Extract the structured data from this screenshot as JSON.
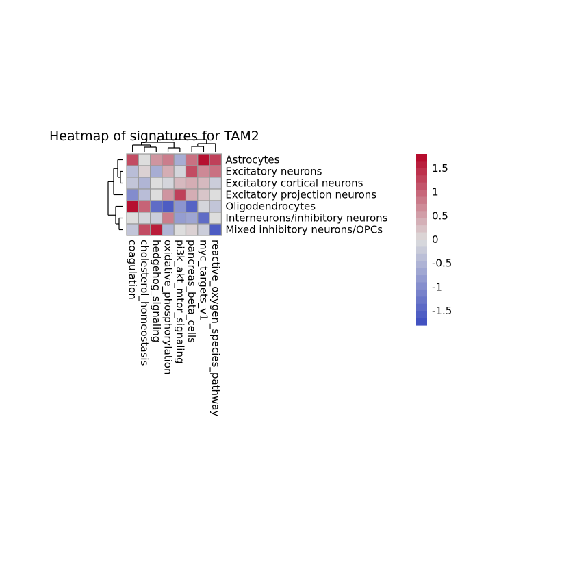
{
  "chart_data": {
    "type": "heatmap",
    "title": "Heatmap of signatures for TAM2",
    "rows": [
      "Astrocytes",
      "Excitatory neurons",
      "Excitatory cortical neurons",
      "Excitatory projection neurons",
      "Oligodendrocytes",
      "Interneurons/inhibitory neurons",
      "Mixed inhibitory neurons/OPCs"
    ],
    "columns": [
      "coagulation",
      "cholesterol_homeostasis",
      "hedgehog_signaling",
      "oxidative_phosphorylation",
      "pi3k_akt_mtor_signaling",
      "pancreas_beta_cells",
      "myc_targets_v1",
      "reactive_oxygen_species_pathway"
    ],
    "values": [
      [
        1.2,
        0.0,
        0.6,
        0.8,
        -0.6,
        0.9,
        1.7,
        1.3
      ],
      [
        -0.4,
        0.1,
        -0.6,
        0.4,
        -0.1,
        1.2,
        0.7,
        0.9
      ],
      [
        -0.3,
        -0.5,
        0.0,
        -0.1,
        0.3,
        0.4,
        0.3,
        -0.2
      ],
      [
        -1.0,
        -0.4,
        0.0,
        0.6,
        1.3,
        0.4,
        0.2,
        0.0
      ],
      [
        1.7,
        1.0,
        -1.4,
        -1.6,
        -0.9,
        -1.5,
        -0.1,
        -0.3
      ],
      [
        0.0,
        -0.1,
        -0.2,
        0.8,
        -0.8,
        -0.7,
        -1.4,
        0.0
      ],
      [
        -0.3,
        1.2,
        1.6,
        -0.5,
        0.0,
        0.1,
        -0.2,
        -1.6
      ]
    ],
    "colorbar": {
      "min": -1.8,
      "max": 1.8,
      "ticks": [
        1.5,
        1,
        0.5,
        0,
        -0.5,
        -1,
        -1.5
      ],
      "tick_labels": [
        "1.5",
        "1",
        "0.5",
        "0",
        "-0.5",
        "-1",
        "-1.5"
      ],
      "colormap": "coolwarm",
      "low_color": "#3b4cc0",
      "mid_color": "#dddddd",
      "high_color": "#b40426"
    },
    "row_dendrogram": true,
    "column_dendrogram": true,
    "legend": "right"
  }
}
